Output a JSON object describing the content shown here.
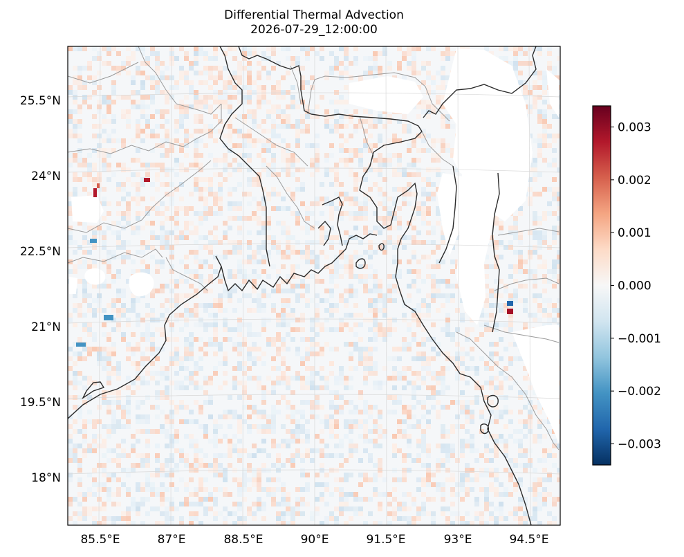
{
  "title": {
    "line1": "Differential Thermal Advection",
    "line2": "2026-07-29_12:00:00"
  },
  "colormap": {
    "name": "RdBu_r",
    "stops": [
      "#053061",
      "#2166ac",
      "#4393c3",
      "#92c5de",
      "#d1e5f0",
      "#f7f7f7",
      "#fddbc7",
      "#f4a582",
      "#d6604d",
      "#b2182b",
      "#67001f"
    ],
    "range": [
      -0.0034,
      0.0034
    ]
  },
  "colorbar": {
    "ticks": [
      {
        "value": 0.003,
        "label": "0.003"
      },
      {
        "value": 0.002,
        "label": "0.002"
      },
      {
        "value": 0.001,
        "label": "0.001"
      },
      {
        "value": 0.0,
        "label": "0.000"
      },
      {
        "value": -0.001,
        "label": "−0.001"
      },
      {
        "value": -0.002,
        "label": "−0.002"
      },
      {
        "value": -0.003,
        "label": "−0.003"
      }
    ]
  },
  "map": {
    "lon_ticks": [
      "85.5°E",
      "87°E",
      "88.5°E",
      "90°E",
      "91.5°E",
      "93°E",
      "94.5°E"
    ],
    "lat_ticks": [
      "25.5°N",
      "24°N",
      "22.5°N",
      "21°N",
      "19.5°N",
      "18°N"
    ],
    "gridlines": true,
    "projection": "Lambert conformal"
  },
  "colors": {
    "coastline": "#2b2b2b",
    "borders": "#9a9a9a",
    "gridline": "#d8d8d8",
    "frame": "#000000"
  }
}
